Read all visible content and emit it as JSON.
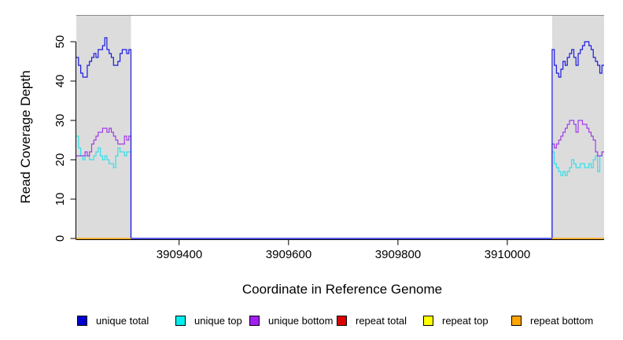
{
  "chart_data": {
    "type": "line",
    "subtype": "step",
    "title": "",
    "xlabel": "Coordinate in Reference Genome",
    "ylabel": "Read Coverage Depth",
    "xlim": [
      3909212,
      3910177
    ],
    "ylim": [
      0,
      56.6
    ],
    "grid": false,
    "band_color": "#DCDCDC",
    "axis_color": "#000000",
    "top_border_color": "#8c8c8c",
    "x_ticks": [
      {
        "value": 3909400,
        "label": "3909400"
      },
      {
        "value": 3909600,
        "label": "3909600"
      },
      {
        "value": 3909800,
        "label": "3909800"
      },
      {
        "value": 3910000,
        "label": "3910000"
      }
    ],
    "y_ticks": [
      {
        "value": 0,
        "label": "0"
      },
      {
        "value": 10,
        "label": "10"
      },
      {
        "value": 20,
        "label": "20"
      },
      {
        "value": 30,
        "label": "30"
      },
      {
        "value": 40,
        "label": "40"
      },
      {
        "value": 50,
        "label": "50"
      }
    ],
    "repeat_regions": [
      [
        3909212,
        3909312
      ],
      [
        3910082,
        3910177
      ]
    ],
    "series": [
      {
        "name": "unique top",
        "color": "#35DFE8",
        "connected": true,
        "parts": [
          {
            "x0": 3909212,
            "dx": 4,
            "values": [
              26,
              23,
              21,
              20,
              21,
              21,
              20,
              20,
              21,
              22,
              23,
              21,
              20,
              21,
              20,
              19,
              19,
              18,
              21,
              23,
              22,
              22,
              21,
              22,
              22
            ]
          },
          {
            "x0": 3909312,
            "dx": 770,
            "values": [
              0
            ]
          },
          {
            "x0": 3910082,
            "dx": 3.9583,
            "values": [
              22,
              19,
              18,
              17,
              16,
              17,
              16,
              17,
              18,
              20,
              19,
              18,
              18,
              19,
              19,
              18,
              18,
              19,
              18,
              20,
              21,
              17,
              21,
              22
            ]
          }
        ]
      },
      {
        "name": "unique bottom",
        "color": "#A33BE8",
        "connected": true,
        "parts": [
          {
            "x0": 3909212,
            "dx": 4,
            "values": [
              21,
              21,
              21,
              21,
              22,
              21,
              22,
              24,
              25,
              26,
              27,
              27,
              28,
              28,
              27,
              28,
              27,
              26,
              25,
              24,
              24,
              24,
              26,
              25,
              26
            ]
          },
          {
            "x0": 3909312,
            "dx": 770,
            "values": [
              0
            ]
          },
          {
            "x0": 3910082,
            "dx": 3.9583,
            "values": [
              24,
              23,
              24,
              25,
              26,
              27,
              28,
              29,
              30,
              30,
              29,
              27,
              30,
              30,
              29,
              29,
              28,
              27,
              26,
              25,
              22,
              21,
              21,
              22
            ]
          }
        ]
      },
      {
        "name": "unique total",
        "color": "#1A1ADF",
        "connected": true,
        "parts": [
          {
            "x0": 3909212,
            "dx": 4,
            "values": [
              46,
              44,
              42,
              41,
              41,
              44,
              45,
              46,
              47,
              46,
              48,
              48,
              49,
              51,
              48,
              47,
              46,
              44,
              44,
              45,
              47,
              48,
              48,
              47,
              48
            ]
          },
          {
            "x0": 3909312,
            "dx": 770,
            "values": [
              0
            ]
          },
          {
            "x0": 3910082,
            "dx": 3.9583,
            "values": [
              48,
              44,
              42,
              41,
              43,
              45,
              44,
              46,
              47,
              48,
              46,
              44,
              47,
              48,
              49,
              50,
              50,
              49,
              48,
              46,
              45,
              44,
              42,
              44
            ]
          }
        ]
      },
      {
        "name": "repeat total",
        "color": "#DD0000",
        "connected": false,
        "parts": [
          {
            "x0": 3909212,
            "dx": 100,
            "values": [
              0
            ]
          },
          {
            "x0": 3910082,
            "dx": 95,
            "values": [
              0
            ]
          }
        ]
      },
      {
        "name": "repeat top",
        "color": "#FFFF00",
        "connected": false,
        "parts": [
          {
            "x0": 3909212,
            "dx": 100,
            "values": [
              0
            ]
          },
          {
            "x0": 3910082,
            "dx": 95,
            "values": [
              0
            ]
          }
        ]
      },
      {
        "name": "repeat bottom",
        "color": "#FFA500",
        "connected": false,
        "parts": [
          {
            "x0": 3909212,
            "dx": 100,
            "values": [
              0
            ]
          },
          {
            "x0": 3910082,
            "dx": 95,
            "values": [
              0
            ]
          }
        ]
      }
    ]
  },
  "legend": {
    "items": [
      {
        "label": "unique total",
        "color": "#0000CD"
      },
      {
        "label": "unique top",
        "color": "#00EEEE"
      },
      {
        "label": "unique bottom",
        "color": "#A020F0"
      },
      {
        "label": "repeat total",
        "color": "#DD0000"
      },
      {
        "label": "repeat top",
        "color": "#FFFF00"
      },
      {
        "label": "repeat bottom",
        "color": "#FFA500"
      }
    ]
  }
}
